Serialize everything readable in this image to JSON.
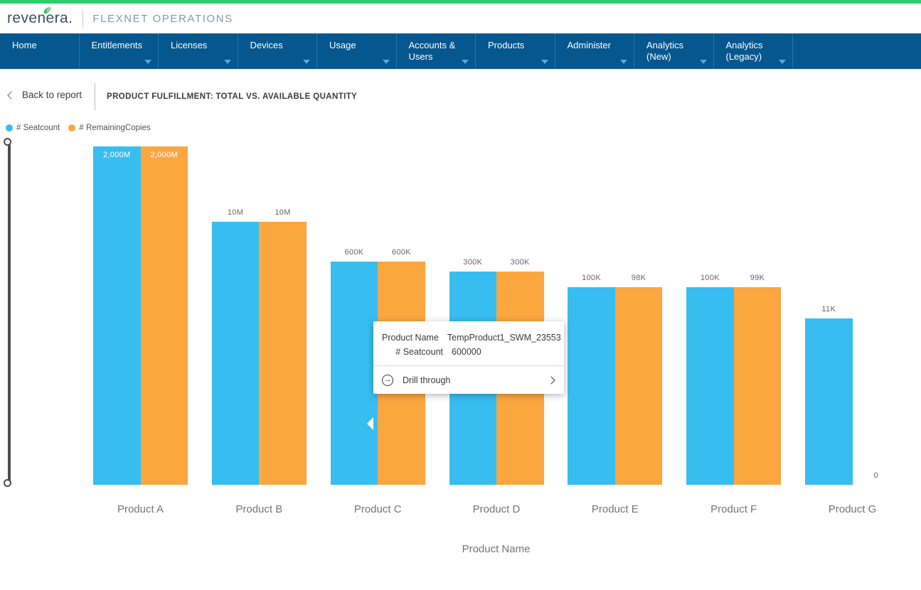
{
  "brand": {
    "logo_text": "revenera.",
    "app_title": "FLEXNET OPERATIONS",
    "accent_green": "#2bce6b"
  },
  "nav": {
    "background": "#05578f",
    "tabs": [
      {
        "label": "Home",
        "has_dropdown": false
      },
      {
        "label": "Entitlements",
        "has_dropdown": true
      },
      {
        "label": "Licenses",
        "has_dropdown": true
      },
      {
        "label": "Devices",
        "has_dropdown": true
      },
      {
        "label": "Usage",
        "has_dropdown": true
      },
      {
        "label": "Accounts & Users",
        "has_dropdown": true
      },
      {
        "label": "Products",
        "has_dropdown": true
      },
      {
        "label": "Administer",
        "has_dropdown": true
      },
      {
        "label": "Analytics (New)",
        "has_dropdown": true
      },
      {
        "label": "Analytics (Legacy)",
        "has_dropdown": true
      }
    ]
  },
  "report_bar": {
    "back_label": "Back to report",
    "title": "PRODUCT FULFILLMENT: TOTAL VS. AVAILABLE QUANTITY"
  },
  "chart_data": {
    "type": "bar",
    "title": "Product Fulfillment: Total vs. Available Quantity",
    "xlabel": "Product Name",
    "ylabel": "",
    "scale": "log",
    "grid": false,
    "legend_position": "top-left",
    "categories": [
      "Product A",
      "Product B",
      "Product C",
      "Product D",
      "Product E",
      "Product F",
      "Product G"
    ],
    "series": [
      {
        "name": "# Seatcount",
        "color": "#38bdf0",
        "values": [
          2000000000,
          10000000,
          600000,
          300000,
          100000,
          100000,
          11000
        ],
        "labels": [
          "2,000M",
          "10M",
          "600K",
          "300K",
          "100K",
          "100K",
          "11K"
        ]
      },
      {
        "name": "# RemainingCopies",
        "color": "#fca640",
        "values": [
          2000000000,
          10000000,
          600000,
          300000,
          98000,
          99000,
          0
        ],
        "labels": [
          "2,000M",
          "10M",
          "600K",
          "300K",
          "98K",
          "99K",
          "0"
        ]
      }
    ]
  },
  "tooltip": {
    "rows": [
      {
        "label": "Product Name",
        "value": "TempProduct1_SWM_23553"
      },
      {
        "label": "# Seatcount",
        "value": "600000"
      }
    ],
    "action_label": "Drill through",
    "drill_icon_glyph": "→"
  }
}
